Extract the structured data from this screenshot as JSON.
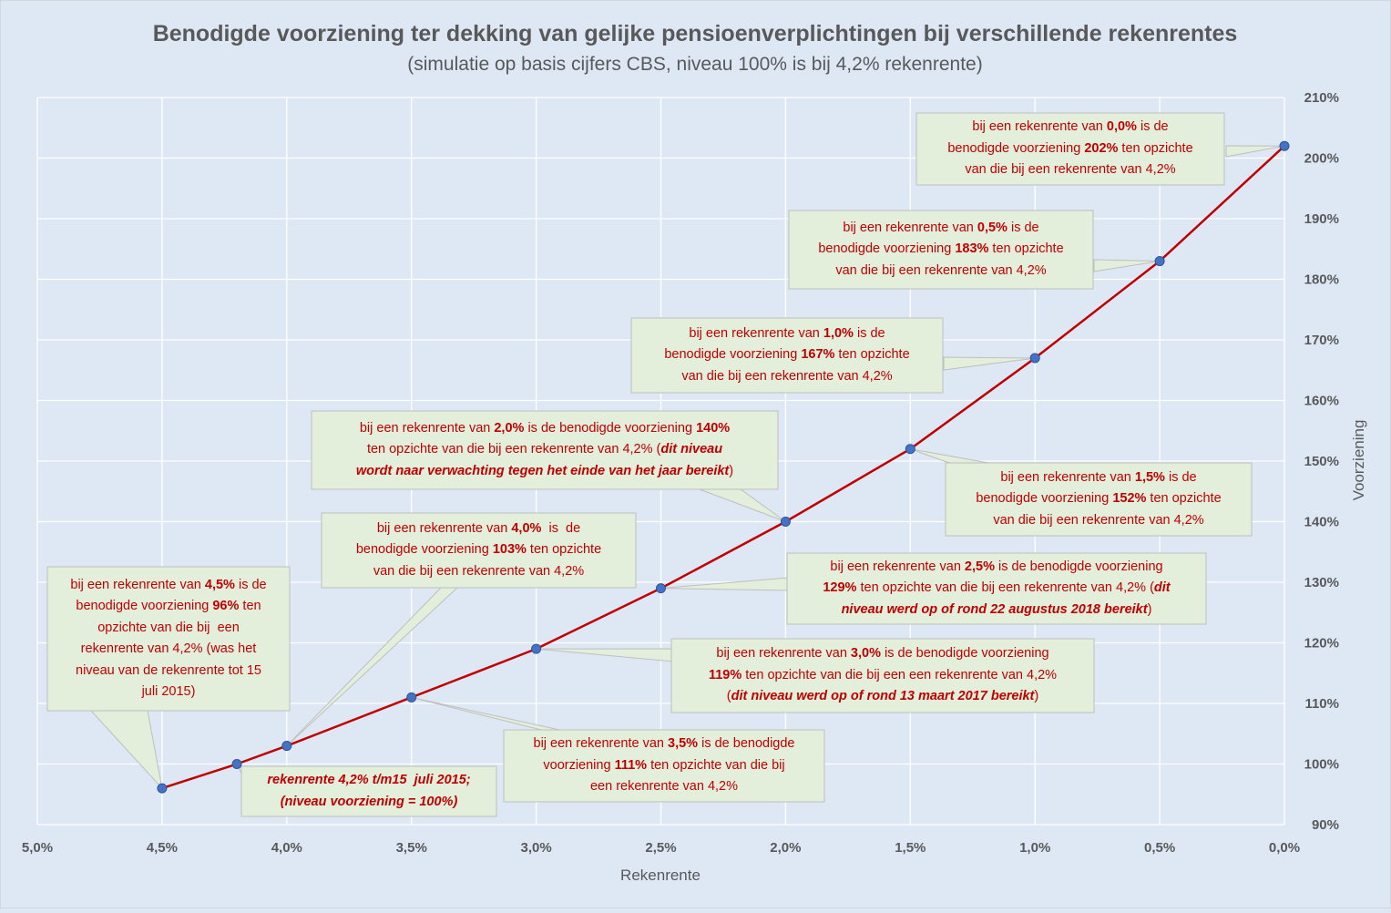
{
  "chart_data": {
    "type": "line",
    "title": "Benodigde voorziening ter dekking van gelijke pensioenverplichtingen bij verschillende rekenrentes",
    "subtitle": "(simulatie op basis cijfers CBS, niveau 100% is bij 4,2% rekenrente)",
    "xlabel": "Rekenrente",
    "ylabel": "Voorziening",
    "x_axis_reversed": true,
    "xlim": [
      5.0,
      0.0
    ],
    "ylim": [
      90,
      210
    ],
    "grid": true,
    "x_ticks": [
      "5,0%",
      "4,5%",
      "4,0%",
      "3,5%",
      "3,0%",
      "2,5%",
      "2,0%",
      "1,5%",
      "1,0%",
      "0,5%",
      "0,0%"
    ],
    "y_ticks": [
      "90%",
      "100%",
      "110%",
      "120%",
      "130%",
      "140%",
      "150%",
      "160%",
      "170%",
      "180%",
      "190%",
      "200%",
      "210%"
    ],
    "series": [
      {
        "color": "#c00000",
        "marker_color": "#4472c4",
        "points": [
          {
            "x": 4.5,
            "y": 96
          },
          {
            "x": 4.2,
            "y": 100
          },
          {
            "x": 4.0,
            "y": 103
          },
          {
            "x": 3.5,
            "y": 111
          },
          {
            "x": 3.0,
            "y": 119
          },
          {
            "x": 2.5,
            "y": 129
          },
          {
            "x": 2.0,
            "y": 140
          },
          {
            "x": 1.5,
            "y": 152
          },
          {
            "x": 1.0,
            "y": 167
          },
          {
            "x": 0.5,
            "y": 183
          },
          {
            "x": 0.0,
            "y": 202
          }
        ]
      }
    ],
    "annotations": [
      {
        "point": {
          "x": 0.0,
          "y": 202
        },
        "text": "bij een rekenrente van <b>0,0%</b> is de<br>benodigde voorziening <b>202%</b> ten opzichte<br>van die bij een rekenrente van 4,2%"
      },
      {
        "point": {
          "x": 0.5,
          "y": 183
        },
        "text": "bij een rekenrente van <b>0,5%</b> is de<br>benodigde voorziening <b>183%</b> ten opzichte<br>van die bij een rekenrente van 4,2%"
      },
      {
        "point": {
          "x": 1.0,
          "y": 167
        },
        "text": "bij een rekenrente van <b>1,0%</b> is de<br>benodigde voorziening <b>167%</b> ten opzichte<br>van die bij een rekenrente van 4,2%"
      },
      {
        "point": {
          "x": 2.0,
          "y": 140
        },
        "text": "bij een rekenrente van <b>2,0%</b> is de benodigde voorziening <b>140%</b><br>ten opzichte van die bij een rekenrente van 4,2% (<i>dit niveau</i><br><i>wordt naar verwachting tegen het einde van het jaar bereikt</i>)"
      },
      {
        "point": {
          "x": 1.5,
          "y": 152
        },
        "text": "bij een rekenrente van <b>1,5%</b> is de<br>benodigde voorziening <b>152%</b> ten opzichte<br>van die bij een rekenrente van 4,2%"
      },
      {
        "point": {
          "x": 4.0,
          "y": 103
        },
        "text": "bij een rekenrente van <b>4,0%</b> &nbsp;is &nbsp;de<br>benodigde voorziening <b>103%</b> ten opzichte<br>van die bij een rekenrente van 4,2%"
      },
      {
        "point": {
          "x": 2.5,
          "y": 129
        },
        "text": "bij een rekenrente van <b>2,5%</b> is de benodigde voorziening<br><b>129%</b> ten opzichte van die bij een rekenrente van 4,2% (<i>dit</i><br><i>niveau werd op of rond 22 augustus 2018 bereikt</i>)"
      },
      {
        "point": {
          "x": 4.5,
          "y": 96
        },
        "text": "bij een rekenrente van <b>4,5%</b> is de<br>benodigde voorziening <b>96%</b> ten<br>opzichte van die bij &nbsp;een<br>rekenrente van 4,2% (was het<br>niveau van de rekenrente tot 15<br>juli 2015)"
      },
      {
        "point": {
          "x": 3.0,
          "y": 119
        },
        "text": "bij een rekenrente van <b>3,0%</b> is de benodigde voorziening<br><b>119%</b> ten opzichte van die bij een een rekenrente van 4,2%<br>(<i>dit niveau werd op of rond 13 maart 2017 bereikt</i>)"
      },
      {
        "point": {
          "x": 3.5,
          "y": 111
        },
        "text": "bij een rekenrente van <b>3,5%</b> is de benodigde<br>voorziening <b>111%</b> ten opzichte van die bij<br>een rekenrente van 4,2%"
      },
      {
        "point": {
          "x": 4.2,
          "y": 100
        },
        "text": "<i>rekenrente 4,2% t/m15 &nbsp;juli 2015;</i><br><i>(niveau voorziening = 100%)</i>"
      }
    ]
  }
}
